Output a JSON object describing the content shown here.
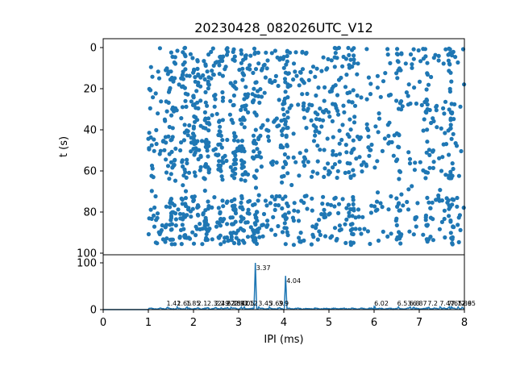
{
  "chart_data": [
    {
      "type": "scatter",
      "title": "20230428_082026UTC_V12",
      "ylabel": "t (s)",
      "xlim": [
        0,
        8
      ],
      "ylim": [
        100,
        0
      ],
      "yticks": [
        "0",
        "20",
        "40",
        "60",
        "80",
        "100"
      ],
      "color": "#1f77b4",
      "x_range_of_points": [
        1.0,
        8.0
      ],
      "y_range_of_points": [
        0,
        96
      ],
      "approx_point_count": 1400,
      "dense_columns_ms": [
        1.55,
        1.8,
        2.05,
        2.3,
        2.6,
        2.9,
        3.1,
        3.37,
        4.04,
        5.5,
        6.55,
        7.2,
        7.7
      ],
      "gaps_s": [
        [
          64,
          72
        ]
      ]
    },
    {
      "type": "line",
      "xlabel": "IPI (ms)",
      "xlim": [
        0,
        8
      ],
      "ylim": [
        0,
        100
      ],
      "xticks": [
        "0",
        "1",
        "2",
        "3",
        "4",
        "5",
        "6",
        "7",
        "8"
      ],
      "yticks": [
        "0",
        "100"
      ],
      "color": "#1f77b4",
      "peaks": [
        {
          "x": 3.37,
          "y": 100,
          "label": "3.37"
        },
        {
          "x": 4.04,
          "y": 72,
          "label": "4.04"
        }
      ],
      "small_peak_labels": [
        {
          "x": 1.42,
          "label": "1.42"
        },
        {
          "x": 1.65,
          "label": "1.65"
        },
        {
          "x": 1.85,
          "label": "1.85"
        },
        {
          "x": 2.1,
          "label": "2.1"
        },
        {
          "x": 2.32,
          "label": "2.32"
        },
        {
          "x": 2.49,
          "label": "2.49"
        },
        {
          "x": 2.62,
          "label": "2.62"
        },
        {
          "x": 2.75,
          "label": "2.75"
        },
        {
          "x": 2.84,
          "label": "2.84"
        },
        {
          "x": 2.92,
          "label": "2.92"
        },
        {
          "x": 3.05,
          "label": "3.05"
        },
        {
          "x": 3.12,
          "label": "3.12"
        },
        {
          "x": 3.45,
          "label": "3.45"
        },
        {
          "x": 3.69,
          "label": "3.69"
        },
        {
          "x": 3.9,
          "label": "3.9"
        },
        {
          "x": 6.02,
          "label": "6.02"
        },
        {
          "x": 6.53,
          "label": "6.53"
        },
        {
          "x": 6.8,
          "label": "6.8"
        },
        {
          "x": 6.87,
          "label": "6.87"
        },
        {
          "x": 7.2,
          "label": "7.2"
        },
        {
          "x": 7.47,
          "label": "7.47"
        },
        {
          "x": 7.65,
          "label": "7.65"
        },
        {
          "x": 7.72,
          "label": "7.72"
        },
        {
          "x": 7.86,
          "label": "7.86"
        },
        {
          "x": 7.95,
          "label": "7.95"
        }
      ]
    }
  ]
}
